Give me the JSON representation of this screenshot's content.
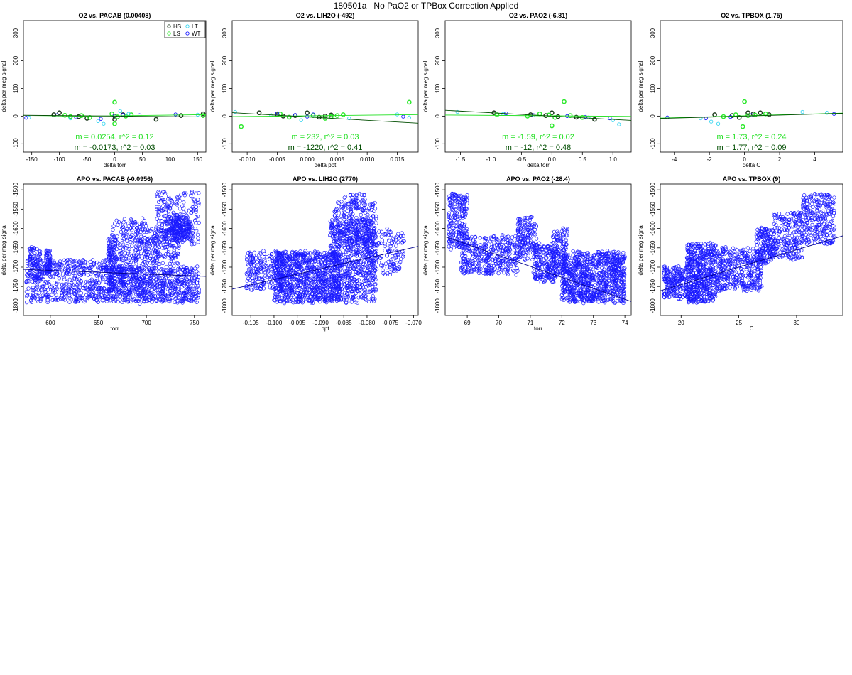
{
  "figure": {
    "title": "180501a   No PaO2 or TPBox Correction Applied"
  },
  "colors": {
    "HS": "#1f3b1f",
    "LS": "#2ee82e",
    "LT": "#39d6f0",
    "WT": "#1a1aff",
    "apo_points": "#1a1aff",
    "fit_dark": "#004d00",
    "fit_light": "#1fe01f",
    "fit_blue": "#00008b"
  },
  "legend": {
    "entries": [
      "HS",
      "LT",
      "LS",
      "WT"
    ]
  },
  "chart_data": [
    {
      "id": "o2-pacab",
      "type": "scatter",
      "title": "O2 vs. PACAB (0.00408)",
      "xlabel": "delta torr",
      "ylabel": "delta per meg signal",
      "xlim": [
        -165,
        165
      ],
      "ylim": [
        -130,
        345
      ],
      "xticks": [
        -150,
        -100,
        -50,
        0,
        50,
        100,
        150
      ],
      "yticks": [
        -100,
        0,
        100,
        200,
        300
      ],
      "legend": "top-right",
      "series": [
        {
          "name": "HS",
          "x": [
            -110,
            -100,
            -65,
            -50,
            0,
            0,
            15,
            75,
            120,
            160
          ],
          "y": [
            5,
            12,
            -2,
            -8,
            0,
            -12,
            5,
            -12,
            2,
            8
          ]
        },
        {
          "name": "LS",
          "x": [
            -90,
            -80,
            -60,
            -45,
            -5,
            0,
            0,
            5,
            20,
            30,
            160
          ],
          "y": [
            3,
            -2,
            2,
            -5,
            8,
            50,
            -28,
            -3,
            0,
            5,
            2
          ]
        },
        {
          "name": "LT",
          "x": [
            -155,
            -80,
            -30,
            -20,
            10,
            25,
            150
          ],
          "y": [
            -5,
            -8,
            -18,
            -28,
            18,
            8,
            5
          ]
        },
        {
          "name": "WT",
          "x": [
            -160,
            -105,
            -70,
            -25,
            0,
            15,
            45,
            110
          ],
          "y": [
            -6,
            3,
            -4,
            -10,
            2,
            4,
            3,
            6
          ]
        }
      ],
      "fits": [
        {
          "name": "fit_light",
          "slope": 0.0254,
          "intercept": 1,
          "label": "m = 0.0254, r^2 = 0.12"
        },
        {
          "name": "fit_dark",
          "slope": -0.0173,
          "intercept": 0,
          "label": "m = -0.0173, r^2 = 0.03"
        }
      ]
    },
    {
      "id": "o2-lih2o",
      "type": "scatter",
      "title": "O2 vs. LIH2O (-492)",
      "xlabel": "delta ppt",
      "ylabel": "delta per meg signal",
      "xlim": [
        -0.0125,
        0.0185
      ],
      "ylim": [
        -130,
        345
      ],
      "xticks": [
        -0.01,
        -0.005,
        0.0,
        0.005,
        0.01,
        0.015
      ],
      "yticks": [
        -100,
        0,
        100,
        200,
        300
      ],
      "series": [
        {
          "name": "HS",
          "x": [
            -0.008,
            -0.005,
            -0.004,
            -0.002,
            0.0,
            0.002,
            0.003,
            0.004
          ],
          "y": [
            12,
            5,
            0,
            2,
            12,
            -4,
            0,
            4
          ]
        },
        {
          "name": "LS",
          "x": [
            -0.011,
            -0.0045,
            -0.003,
            0.001,
            0.003,
            0.004,
            0.005,
            0.006,
            0.017
          ],
          "y": [
            -38,
            8,
            -4,
            2,
            -8,
            -2,
            2,
            5,
            50
          ]
        },
        {
          "name": "LT",
          "x": [
            -0.012,
            -0.006,
            -0.001,
            0.007,
            0.015,
            0.017
          ],
          "y": [
            15,
            3,
            -15,
            -8,
            6,
            -5
          ]
        },
        {
          "name": "WT",
          "x": [
            -0.005,
            -0.002,
            0.0,
            0.001,
            0.016
          ],
          "y": [
            10,
            4,
            -2,
            6,
            -2
          ]
        }
      ],
      "fits": [
        {
          "name": "fit_light",
          "slope": 232,
          "intercept": 1,
          "label": "m = 232, r^2 = 0.03"
        },
        {
          "name": "fit_dark",
          "slope": -1220,
          "intercept": -3,
          "label": "m = -1220, r^2 = 0.41"
        }
      ]
    },
    {
      "id": "o2-pao2",
      "type": "scatter",
      "title": "O2 vs. PAO2 (-6.81)",
      "xlabel": "delta torr",
      "ylabel": "delta per meg signal",
      "xlim": [
        -1.75,
        1.3
      ],
      "ylim": [
        -130,
        345
      ],
      "xticks": [
        -1.5,
        -1.0,
        -0.5,
        0.0,
        0.5,
        1.0
      ],
      "yticks": [
        -100,
        0,
        100,
        200,
        300
      ],
      "series": [
        {
          "name": "HS",
          "x": [
            -0.95,
            -0.35,
            -0.1,
            0.0,
            0.1,
            0.4,
            0.7
          ],
          "y": [
            12,
            5,
            2,
            12,
            -2,
            -4,
            -12
          ]
        },
        {
          "name": "LS",
          "x": [
            -0.9,
            -0.4,
            -0.2,
            -0.05,
            0.0,
            0.05,
            0.2,
            0.3,
            0.5
          ],
          "y": [
            5,
            0,
            8,
            4,
            -35,
            -5,
            52,
            2,
            -5
          ]
        },
        {
          "name": "LT",
          "x": [
            -1.55,
            -0.8,
            0.6,
            1.0,
            1.1
          ],
          "y": [
            15,
            8,
            -5,
            -15,
            -30
          ]
        },
        {
          "name": "WT",
          "x": [
            -0.75,
            -0.3,
            0.25,
            0.55,
            0.95
          ],
          "y": [
            10,
            3,
            0,
            -3,
            -8
          ]
        }
      ],
      "fits": [
        {
          "name": "fit_light",
          "slope": -1.59,
          "intercept": 1,
          "label": "m = -1.59, r^2 = 0.02"
        },
        {
          "name": "fit_dark",
          "slope": -12,
          "intercept": 0,
          "label": "m = -12, r^2 = 0.48"
        }
      ]
    },
    {
      "id": "o2-tpbox",
      "type": "scatter",
      "title": "O2 vs. TPBOX (1.75)",
      "xlabel": "delta C",
      "ylabel": "delta per meg signal",
      "xlim": [
        -4.8,
        5.6
      ],
      "ylim": [
        -130,
        345
      ],
      "xticks": [
        -4,
        -2,
        0,
        2,
        4
      ],
      "yticks": [
        -100,
        0,
        100,
        200,
        300
      ],
      "series": [
        {
          "name": "HS",
          "x": [
            -1.7,
            -0.7,
            -0.3,
            0.2,
            0.5,
            0.9,
            1.4
          ],
          "y": [
            5,
            2,
            -5,
            12,
            8,
            12,
            5
          ]
        },
        {
          "name": "LS",
          "x": [
            -1.2,
            -0.5,
            0.0,
            -0.1,
            0.2,
            0.6,
            1.2
          ],
          "y": [
            -2,
            5,
            52,
            -38,
            2,
            4,
            8
          ]
        },
        {
          "name": "LT",
          "x": [
            -2.5,
            -1.9,
            -1.5,
            3.3,
            4.7
          ],
          "y": [
            -8,
            -20,
            -28,
            15,
            12
          ]
        },
        {
          "name": "WT",
          "x": [
            -4.4,
            -2.2,
            -0.8,
            0.4,
            5.1
          ],
          "y": [
            -5,
            -8,
            -3,
            3,
            8
          ]
        }
      ],
      "fits": [
        {
          "name": "fit_light",
          "slope": 1.73,
          "intercept": 1,
          "label": "m = 1.73, r^2 = 0.24"
        },
        {
          "name": "fit_dark",
          "slope": 1.77,
          "intercept": 0,
          "label": "m = 1.77, r^2 = 0.09"
        }
      ]
    },
    {
      "id": "apo-pacab",
      "type": "scatter",
      "title": "APO vs. PACAB (-0.0956)",
      "xlabel": "torr",
      "ylabel": "delta per meg signal",
      "xlim": [
        572,
        762
      ],
      "ylim": [
        -1825,
        -1485
      ],
      "xticks": [
        600,
        650,
        700,
        750
      ],
      "yticks": [
        -1800,
        -1750,
        -1700,
        -1650,
        -1600,
        -1550,
        -1500
      ],
      "density": [
        {
          "x": [
            575,
            660
          ],
          "y": [
            -1790,
            -1680
          ],
          "n": 500
        },
        {
          "x": [
            578,
            590
          ],
          "y": [
            -1740,
            -1650
          ],
          "n": 90
        },
        {
          "x": [
            595,
            600
          ],
          "y": [
            -1720,
            -1655
          ],
          "n": 70
        },
        {
          "x": [
            660,
            668
          ],
          "y": [
            -1760,
            -1620
          ],
          "n": 120
        },
        {
          "x": [
            665,
            700
          ],
          "y": [
            -1740,
            -1575
          ],
          "n": 260
        },
        {
          "x": [
            700,
            735
          ],
          "y": [
            -1690,
            -1600
          ],
          "n": 180
        },
        {
          "x": [
            710,
            755
          ],
          "y": [
            -1640,
            -1505
          ],
          "n": 240
        },
        {
          "x": [
            725,
            745
          ],
          "y": [
            -1630,
            -1570
          ],
          "n": 150
        },
        {
          "x": [
            660,
            755
          ],
          "y": [
            -1790,
            -1700
          ],
          "n": 700
        }
      ],
      "fits": [
        {
          "name": "fit_blue",
          "slope": -0.0956,
          "intercept": -1651,
          "label": ""
        }
      ]
    },
    {
      "id": "apo-lih2o",
      "type": "scatter",
      "title": "APO vs. LIH2O (2770)",
      "xlabel": "ppt",
      "ylabel": "delta per meg signal",
      "xlim": [
        -0.109,
        -0.069
      ],
      "ylim": [
        -1825,
        -1485
      ],
      "xticks": [
        -0.105,
        -0.1,
        -0.095,
        -0.09,
        -0.085,
        -0.08,
        -0.075,
        -0.07
      ],
      "yticks": [
        -1800,
        -1750,
        -1700,
        -1650,
        -1600,
        -1550,
        -1500
      ],
      "density": [
        {
          "x": [
            -0.106,
            -0.098
          ],
          "y": [
            -1760,
            -1660
          ],
          "n": 220
        },
        {
          "x": [
            -0.1,
            -0.086
          ],
          "y": [
            -1790,
            -1660
          ],
          "n": 900
        },
        {
          "x": [
            -0.088,
            -0.078
          ],
          "y": [
            -1790,
            -1580
          ],
          "n": 650
        },
        {
          "x": [
            -0.087,
            -0.078
          ],
          "y": [
            -1650,
            -1530
          ],
          "n": 260
        },
        {
          "x": [
            -0.08,
            -0.072
          ],
          "y": [
            -1720,
            -1600
          ],
          "n": 140
        },
        {
          "x": [
            -0.085,
            -0.08
          ],
          "y": [
            -1540,
            -1510
          ],
          "n": 30
        }
      ],
      "fits": [
        {
          "name": "fit_blue",
          "slope": 2770,
          "intercept": -1455,
          "label": ""
        }
      ]
    },
    {
      "id": "apo-pao2",
      "type": "scatter",
      "title": "APO vs. PAO2 (-28.4)",
      "xlabel": "torr",
      "ylabel": "delta per meg signal",
      "xlim": [
        68.3,
        74.2
      ],
      "ylim": [
        -1825,
        -1485
      ],
      "xticks": [
        69,
        70,
        71,
        72,
        73,
        74
      ],
      "yticks": [
        -1800,
        -1750,
        -1700,
        -1650,
        -1600,
        -1550,
        -1500
      ],
      "density": [
        {
          "x": [
            68.4,
            69.0
          ],
          "y": [
            -1650,
            -1510
          ],
          "n": 220
        },
        {
          "x": [
            68.8,
            70.6
          ],
          "y": [
            -1720,
            -1620
          ],
          "n": 380
        },
        {
          "x": [
            70.6,
            71.2
          ],
          "y": [
            -1680,
            -1570
          ],
          "n": 160
        },
        {
          "x": [
            71.1,
            71.8
          ],
          "y": [
            -1740,
            -1640
          ],
          "n": 200
        },
        {
          "x": [
            71.7,
            72.2
          ],
          "y": [
            -1720,
            -1600
          ],
          "n": 140
        },
        {
          "x": [
            72.0,
            74.0
          ],
          "y": [
            -1790,
            -1660
          ],
          "n": 900
        }
      ],
      "fits": [
        {
          "name": "fit_blue",
          "slope": -28.4,
          "intercept": 318.5,
          "label": ""
        }
      ]
    },
    {
      "id": "apo-tpbox",
      "type": "scatter",
      "title": "APO vs. TPBOX (9)",
      "xlabel": "C",
      "ylabel": "delta per meg signal",
      "xlim": [
        18.2,
        34.0
      ],
      "ylim": [
        -1825,
        -1485
      ],
      "xticks": [
        20,
        25,
        30
      ],
      "yticks": [
        -1800,
        -1750,
        -1700,
        -1650,
        -1600,
        -1550,
        -1500
      ],
      "density": [
        {
          "x": [
            18.5,
            20.5
          ],
          "y": [
            -1780,
            -1700
          ],
          "n": 220
        },
        {
          "x": [
            20.5,
            23.0
          ],
          "y": [
            -1790,
            -1640
          ],
          "n": 550
        },
        {
          "x": [
            23.0,
            27.0
          ],
          "y": [
            -1760,
            -1650
          ],
          "n": 400
        },
        {
          "x": [
            26.5,
            28.0
          ],
          "y": [
            -1690,
            -1600
          ],
          "n": 160
        },
        {
          "x": [
            28.0,
            30.5
          ],
          "y": [
            -1680,
            -1560
          ],
          "n": 220
        },
        {
          "x": [
            30.5,
            33.3
          ],
          "y": [
            -1640,
            -1510
          ],
          "n": 260
        }
      ],
      "fits": [
        {
          "name": "fit_blue",
          "slope": 9,
          "intercept": -1925,
          "label": ""
        }
      ]
    }
  ]
}
